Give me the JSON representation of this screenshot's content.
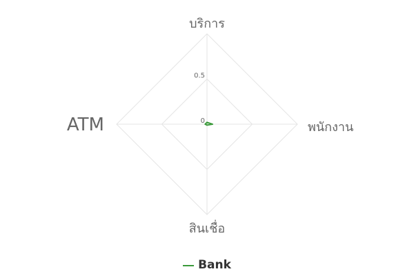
{
  "chart_data": {
    "type": "radar",
    "categories": [
      "บริการ",
      "พนักงาน",
      "สินเชื่อ",
      "ATM"
    ],
    "series": [
      {
        "name": "Bank",
        "values": [
          0.02,
          0.06,
          0.01,
          0.02
        ],
        "color": "#3a9a3a"
      }
    ],
    "r_range": [
      0,
      1
    ],
    "r_ticks": [
      0,
      0.5
    ],
    "tick_labels": [
      "0",
      "0.5"
    ],
    "grid": true,
    "gridline_color": "#e5e5e5",
    "legend": "bottom"
  }
}
